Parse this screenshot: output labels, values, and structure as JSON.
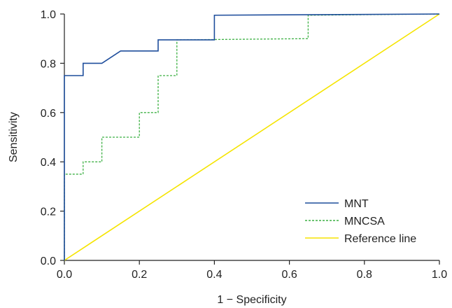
{
  "chart_data": {
    "type": "line",
    "title": "",
    "xlabel": "1 − Specificity",
    "ylabel": "Sensitivity",
    "xlim": [
      0,
      1
    ],
    "ylim": [
      0,
      1
    ],
    "x_ticks": [
      "0.0",
      "0.2",
      "0.4",
      "0.6",
      "0.8",
      "1.0"
    ],
    "y_ticks": [
      "0.0",
      "0.2",
      "0.4",
      "0.6",
      "0.8",
      "1.0"
    ],
    "grid": false,
    "legend_position": "bottom-right",
    "series": [
      {
        "name": "MNT",
        "color": "#1f4e9c",
        "style": "solid",
        "points": [
          [
            0,
            0
          ],
          [
            0,
            0.75
          ],
          [
            0.05,
            0.75
          ],
          [
            0.05,
            0.8
          ],
          [
            0.1,
            0.8
          ],
          [
            0.15,
            0.85
          ],
          [
            0.25,
            0.85
          ],
          [
            0.25,
            0.895
          ],
          [
            0.4,
            0.895
          ],
          [
            0.4,
            0.995
          ],
          [
            1,
            1
          ]
        ]
      },
      {
        "name": "MNCSA",
        "color": "#3cb043",
        "style": "dashed",
        "points": [
          [
            0,
            0
          ],
          [
            0,
            0.35
          ],
          [
            0.05,
            0.35
          ],
          [
            0.05,
            0.4
          ],
          [
            0.1,
            0.4
          ],
          [
            0.1,
            0.5
          ],
          [
            0.2,
            0.5
          ],
          [
            0.2,
            0.6
          ],
          [
            0.25,
            0.6
          ],
          [
            0.25,
            0.75
          ],
          [
            0.3,
            0.75
          ],
          [
            0.3,
            0.895
          ],
          [
            0.65,
            0.9
          ],
          [
            0.65,
            0.995
          ],
          [
            1,
            1
          ]
        ]
      },
      {
        "name": "Reference line",
        "color": "#f5e400",
        "style": "solid",
        "points": [
          [
            0,
            0
          ],
          [
            1,
            1
          ]
        ]
      }
    ]
  }
}
